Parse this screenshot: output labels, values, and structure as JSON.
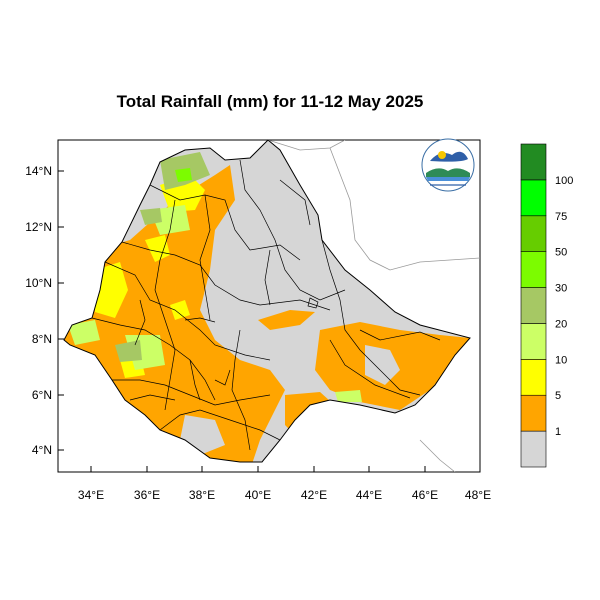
{
  "title": "Total Rainfall (mm) for 11-12 May 2025",
  "chart_data": {
    "type": "map",
    "title": "Total Rainfall (mm) for 11-12 May 2025",
    "region": "Ethiopia",
    "x_ticks": [
      "34°E",
      "36°E",
      "38°E",
      "40°E",
      "42°E",
      "44°E",
      "46°E",
      "48°E"
    ],
    "y_ticks": [
      "14°N",
      "12°N",
      "10°N",
      "8°N",
      "6°N",
      "4°N"
    ],
    "lon_range": [
      33,
      48.2
    ],
    "lat_range": [
      3.2,
      15
    ],
    "legend": [
      {
        "label": "1",
        "color": "#d6d6d6"
      },
      {
        "label": "5",
        "color": "#ffa500"
      },
      {
        "label": "10",
        "color": "#ffff00"
      },
      {
        "label": "20",
        "color": "#ccff66"
      },
      {
        "label": "30",
        "color": "#a6c864"
      },
      {
        "label": "50",
        "color": "#7cfc00"
      },
      {
        "label": "75",
        "color": "#66cd00"
      },
      {
        "label": "100",
        "color": "#00ff00"
      },
      {
        "label": "",
        "color": "#228b22"
      }
    ]
  },
  "logo": {
    "text": "Ethiopian Meteorology Institute"
  }
}
